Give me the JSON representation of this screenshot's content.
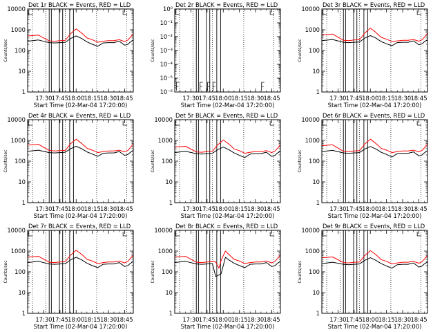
{
  "figure": {
    "x_tick_labels": [
      "17:30",
      "17:45",
      "18:00",
      "18:15",
      "18:30",
      "18:45"
    ],
    "x_label": "Start Time (02-Mar-04 17:20:00)",
    "y_label": "Counts/sec",
    "colors": {
      "events": "#000000",
      "lld": "#ff0000",
      "axes": "#000000",
      "background": "#ffffff"
    }
  },
  "chart_data": [
    {
      "type": "line",
      "title": "Det 1r BLACK = Events, RED = LLD",
      "y_scale": "log",
      "ylim": [
        1,
        10000
      ],
      "y_tick_labels": [
        "1",
        "10",
        "100",
        "1000",
        "10000"
      ],
      "x_unit": "minutes after 17:20",
      "xlim": [
        -5,
        93
      ],
      "series": [
        {
          "name": "Events",
          "color": "#000000",
          "x": [
            -5,
            5,
            15,
            20,
            25,
            30,
            35,
            40,
            45,
            50,
            55,
            60,
            65,
            70,
            75,
            80,
            85,
            88,
            90,
            93
          ],
          "y": [
            280,
            320,
            240,
            230,
            240,
            250,
            380,
            500,
            380,
            260,
            200,
            160,
            230,
            240,
            240,
            280,
            180,
            200,
            250,
            320
          ]
        },
        {
          "name": "LLD",
          "color": "#ff0000",
          "x": [
            -5,
            5,
            15,
            20,
            25,
            30,
            35,
            40,
            45,
            50,
            55,
            60,
            65,
            70,
            75,
            80,
            85,
            88,
            90,
            93
          ],
          "y": [
            500,
            550,
            290,
            280,
            300,
            310,
            650,
            1100,
            700,
            400,
            330,
            250,
            280,
            300,
            300,
            330,
            270,
            320,
            420,
            650
          ]
        }
      ]
    },
    {
      "type": "line",
      "title": "Det 2r BLACK = Events, RED = LLD",
      "y_scale": "log",
      "ylim": [
        1e-06,
        1
      ],
      "y_tick_labels": [
        "10⁻⁶",
        "10⁻⁵",
        "10⁻⁴",
        "10⁻³",
        "10⁻²",
        "10⁻¹",
        "10⁰"
      ],
      "x_unit": "minutes after 17:20",
      "xlim": [
        -5,
        93
      ],
      "series": []
    },
    {
      "type": "line",
      "title": "Det 3r BLACK = Events, RED = LLD",
      "y_scale": "log",
      "ylim": [
        1,
        10000
      ],
      "y_tick_labels": [
        "1",
        "10",
        "100",
        "1000",
        "10000"
      ],
      "x_unit": "minutes after 17:20",
      "xlim": [
        -5,
        93
      ],
      "series": [
        {
          "name": "Events",
          "color": "#000000",
          "x": [
            -5,
            5,
            15,
            20,
            25,
            30,
            35,
            40,
            45,
            50,
            55,
            60,
            65,
            70,
            75,
            80,
            85,
            88,
            90,
            93
          ],
          "y": [
            300,
            340,
            250,
            240,
            250,
            260,
            400,
            520,
            400,
            270,
            210,
            170,
            240,
            250,
            250,
            290,
            190,
            210,
            260,
            330
          ]
        },
        {
          "name": "LLD",
          "color": "#ff0000",
          "x": [
            -5,
            5,
            15,
            20,
            25,
            30,
            35,
            40,
            45,
            50,
            55,
            60,
            65,
            70,
            75,
            80,
            85,
            88,
            90,
            93
          ],
          "y": [
            550,
            620,
            310,
            300,
            320,
            330,
            700,
            1200,
            750,
            430,
            350,
            270,
            290,
            310,
            310,
            340,
            280,
            330,
            430,
            680
          ]
        }
      ]
    },
    {
      "type": "line",
      "title": "Det 4r BLACK = Events, RED = LLD",
      "y_scale": "log",
      "ylim": [
        1,
        10000
      ],
      "y_tick_labels": [
        "1",
        "10",
        "100",
        "1000",
        "10000"
      ],
      "x_unit": "minutes after 17:20",
      "xlim": [
        -5,
        93
      ],
      "series": [
        {
          "name": "Events",
          "color": "#000000",
          "x": [
            -5,
            5,
            15,
            20,
            25,
            30,
            35,
            40,
            45,
            50,
            55,
            60,
            65,
            70,
            75,
            80,
            85,
            88,
            90,
            93
          ],
          "y": [
            300,
            340,
            260,
            250,
            260,
            270,
            400,
            520,
            400,
            280,
            220,
            170,
            240,
            250,
            250,
            290,
            190,
            210,
            260,
            330
          ]
        },
        {
          "name": "LLD",
          "color": "#ff0000",
          "x": [
            -5,
            5,
            15,
            20,
            25,
            30,
            35,
            40,
            45,
            50,
            55,
            60,
            65,
            70,
            75,
            80,
            85,
            88,
            90,
            93
          ],
          "y": [
            600,
            650,
            330,
            310,
            320,
            330,
            700,
            1150,
            720,
            420,
            340,
            260,
            290,
            310,
            310,
            340,
            280,
            330,
            430,
            680
          ]
        }
      ]
    },
    {
      "type": "line",
      "title": "Det 5r BLACK = Events, RED = LLD",
      "y_scale": "log",
      "ylim": [
        1,
        10000
      ],
      "y_tick_labels": [
        "1",
        "10",
        "100",
        "1000",
        "10000"
      ],
      "x_unit": "minutes after 17:20",
      "xlim": [
        -5,
        93
      ],
      "series": [
        {
          "name": "Events",
          "color": "#000000",
          "x": [
            -5,
            5,
            15,
            20,
            25,
            30,
            35,
            40,
            45,
            50,
            55,
            60,
            65,
            70,
            75,
            80,
            85,
            88,
            90,
            93
          ],
          "y": [
            260,
            300,
            230,
            220,
            230,
            240,
            360,
            480,
            360,
            250,
            190,
            150,
            220,
            230,
            230,
            270,
            170,
            190,
            240,
            300
          ]
        },
        {
          "name": "LLD",
          "color": "#ff0000",
          "x": [
            -5,
            5,
            15,
            20,
            25,
            30,
            35,
            40,
            45,
            50,
            55,
            60,
            65,
            70,
            75,
            80,
            85,
            88,
            90,
            93
          ],
          "y": [
            480,
            520,
            280,
            270,
            290,
            300,
            620,
            1050,
            680,
            390,
            320,
            240,
            270,
            290,
            290,
            320,
            260,
            310,
            400,
            620
          ]
        }
      ]
    },
    {
      "type": "line",
      "title": "Det 6r BLACK = Events, RED = LLD",
      "y_scale": "log",
      "ylim": [
        1,
        10000
      ],
      "y_tick_labels": [
        "1",
        "10",
        "100",
        "1000",
        "10000"
      ],
      "x_unit": "minutes after 17:20",
      "xlim": [
        -5,
        93
      ],
      "series": [
        {
          "name": "Events",
          "color": "#000000",
          "x": [
            -5,
            5,
            15,
            20,
            25,
            30,
            35,
            40,
            45,
            50,
            55,
            60,
            65,
            70,
            75,
            80,
            85,
            88,
            90,
            93
          ],
          "y": [
            290,
            330,
            250,
            240,
            250,
            260,
            390,
            510,
            390,
            270,
            210,
            160,
            230,
            240,
            240,
            280,
            180,
            200,
            250,
            320
          ]
        },
        {
          "name": "LLD",
          "color": "#ff0000",
          "x": [
            -5,
            5,
            15,
            20,
            25,
            30,
            35,
            40,
            45,
            50,
            55,
            60,
            65,
            70,
            75,
            80,
            85,
            88,
            90,
            93
          ],
          "y": [
            560,
            610,
            300,
            290,
            310,
            320,
            680,
            1150,
            720,
            420,
            340,
            260,
            290,
            310,
            310,
            340,
            280,
            330,
            430,
            680
          ]
        }
      ]
    },
    {
      "type": "line",
      "title": "Det 7r BLACK = Events, RED = LLD",
      "y_scale": "log",
      "ylim": [
        1,
        10000
      ],
      "y_tick_labels": [
        "1",
        "10",
        "100",
        "1000",
        "10000"
      ],
      "x_unit": "minutes after 17:20",
      "xlim": [
        -5,
        93
      ],
      "series": [
        {
          "name": "Events",
          "color": "#000000",
          "x": [
            -5,
            5,
            15,
            20,
            25,
            30,
            35,
            40,
            45,
            50,
            55,
            60,
            65,
            70,
            75,
            80,
            85,
            88,
            90,
            93
          ],
          "y": [
            280,
            320,
            240,
            230,
            240,
            250,
            380,
            500,
            380,
            260,
            200,
            160,
            230,
            240,
            240,
            280,
            180,
            200,
            250,
            320
          ]
        },
        {
          "name": "LLD",
          "color": "#ff0000",
          "x": [
            -5,
            5,
            15,
            20,
            25,
            30,
            35,
            40,
            45,
            50,
            55,
            60,
            65,
            70,
            75,
            80,
            85,
            88,
            90,
            93
          ],
          "y": [
            520,
            560,
            290,
            280,
            300,
            310,
            650,
            1100,
            700,
            400,
            330,
            250,
            280,
            300,
            300,
            330,
            270,
            320,
            420,
            650
          ]
        }
      ]
    },
    {
      "type": "line",
      "title": "Det 8r BLACK = Events, RED = LLD",
      "y_scale": "log",
      "ylim": [
        1,
        10000
      ],
      "y_tick_labels": [
        "1",
        "10",
        "100",
        "1000",
        "10000"
      ],
      "x_unit": "minutes after 17:20",
      "xlim": [
        -5,
        93
      ],
      "series": [
        {
          "name": "Events",
          "color": "#000000",
          "x": [
            -5,
            5,
            15,
            20,
            25,
            30,
            33,
            36,
            38,
            40,
            42,
            45,
            50,
            55,
            60,
            65,
            70,
            75,
            80,
            85,
            88,
            90,
            93
          ],
          "y": [
            280,
            320,
            240,
            230,
            240,
            250,
            60,
            70,
            80,
            200,
            500,
            380,
            260,
            200,
            160,
            230,
            240,
            240,
            280,
            180,
            200,
            250,
            320
          ]
        },
        {
          "name": "LLD",
          "color": "#ff0000",
          "x": [
            -5,
            5,
            15,
            20,
            25,
            30,
            33,
            36,
            38,
            40,
            42,
            45,
            50,
            55,
            60,
            65,
            70,
            75,
            80,
            85,
            88,
            90,
            93
          ],
          "y": [
            520,
            560,
            290,
            280,
            300,
            310,
            300,
            150,
            350,
            600,
            1000,
            700,
            400,
            330,
            250,
            280,
            300,
            300,
            330,
            270,
            320,
            420,
            650
          ]
        }
      ]
    },
    {
      "type": "line",
      "title": "Det 9r BLACK = Events, RED = LLD",
      "y_scale": "log",
      "ylim": [
        1,
        10000
      ],
      "y_tick_labels": [
        "1",
        "10",
        "100",
        "1000",
        "10000"
      ],
      "x_unit": "minutes after 17:20",
      "xlim": [
        -5,
        93
      ],
      "series": [
        {
          "name": "Events",
          "color": "#000000",
          "x": [
            -5,
            5,
            15,
            20,
            25,
            30,
            35,
            40,
            45,
            50,
            55,
            60,
            65,
            70,
            75,
            80,
            85,
            88,
            90,
            93
          ],
          "y": [
            250,
            290,
            230,
            220,
            230,
            240,
            360,
            480,
            360,
            250,
            190,
            150,
            220,
            230,
            230,
            270,
            170,
            190,
            240,
            300
          ]
        },
        {
          "name": "LLD",
          "color": "#ff0000",
          "x": [
            -5,
            5,
            15,
            20,
            25,
            30,
            35,
            40,
            45,
            50,
            55,
            60,
            65,
            70,
            75,
            80,
            85,
            88,
            90,
            93
          ],
          "y": [
            480,
            520,
            280,
            270,
            290,
            300,
            620,
            1050,
            680,
            390,
            320,
            240,
            270,
            290,
            290,
            320,
            260,
            310,
            400,
            620
          ]
        }
      ]
    }
  ]
}
